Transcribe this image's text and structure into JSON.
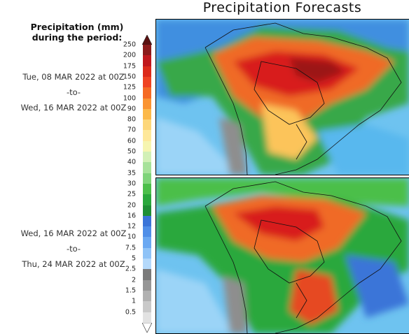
{
  "title": "Precipitation Forecasts",
  "legend": {
    "title_line1": "Precipitation (mm)",
    "title_line2": "during the period:",
    "levels": [
      "250",
      "200",
      "175",
      "150",
      "125",
      "100",
      "90",
      "80",
      "70",
      "60",
      "50",
      "40",
      "35",
      "30",
      "25",
      "20",
      "16",
      "12",
      "10",
      "7.5",
      "5",
      "2.5",
      "2",
      "1.5",
      "1",
      "0.5"
    ],
    "colors": [
      "#8b1a1a",
      "#c0171c",
      "#dc2a1a",
      "#ef4322",
      "#f56a24",
      "#fa9432",
      "#fcb94a",
      "#fdd77a",
      "#fee89a",
      "#f6f5b0",
      "#d2f0b6",
      "#a7e29a",
      "#7fd47a",
      "#4cbf4a",
      "#2aa83c",
      "#1f8f35",
      "#3a74d8",
      "#4f8ee8",
      "#6aa8f2",
      "#8fc3f7",
      "#b4d9fb",
      "#7a7a7a",
      "#969696",
      "#b1b1b1",
      "#c9c9c9",
      "#e2e2e2"
    ]
  },
  "periods": [
    {
      "start": "Tue, 08 MAR 2022 at 00Z",
      "sep": "-to-",
      "end": "Wed, 16 MAR 2022 at 00Z"
    },
    {
      "start": "Wed, 16 MAR 2022 at 00Z",
      "sep": "-to-",
      "end": "Thu, 24 MAR 2022 at 00Z"
    }
  ]
}
